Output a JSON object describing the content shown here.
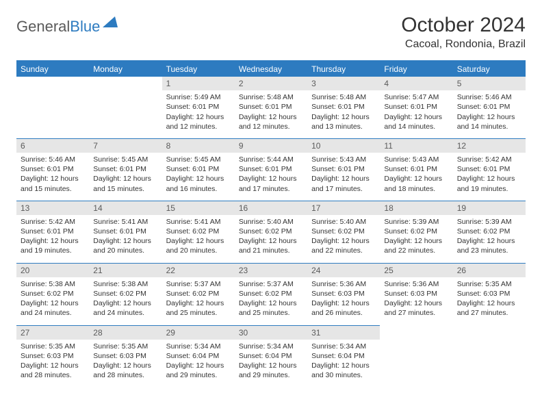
{
  "brand": {
    "word1": "General",
    "word2": "Blue",
    "logo_color": "#2d7bc0"
  },
  "title": "October 2024",
  "location": "Cacoal, Rondonia, Brazil",
  "colors": {
    "header_bg": "#2d7bc0",
    "header_text": "#ffffff",
    "daynum_bg": "#e6e6e6",
    "text": "#333333"
  },
  "day_headers": [
    "Sunday",
    "Monday",
    "Tuesday",
    "Wednesday",
    "Thursday",
    "Friday",
    "Saturday"
  ],
  "weeks": [
    [
      null,
      null,
      {
        "n": "1",
        "sunrise": "5:49 AM",
        "sunset": "6:01 PM",
        "daylight": "12 hours and 12 minutes."
      },
      {
        "n": "2",
        "sunrise": "5:48 AM",
        "sunset": "6:01 PM",
        "daylight": "12 hours and 12 minutes."
      },
      {
        "n": "3",
        "sunrise": "5:48 AM",
        "sunset": "6:01 PM",
        "daylight": "12 hours and 13 minutes."
      },
      {
        "n": "4",
        "sunrise": "5:47 AM",
        "sunset": "6:01 PM",
        "daylight": "12 hours and 14 minutes."
      },
      {
        "n": "5",
        "sunrise": "5:46 AM",
        "sunset": "6:01 PM",
        "daylight": "12 hours and 14 minutes."
      }
    ],
    [
      {
        "n": "6",
        "sunrise": "5:46 AM",
        "sunset": "6:01 PM",
        "daylight": "12 hours and 15 minutes."
      },
      {
        "n": "7",
        "sunrise": "5:45 AM",
        "sunset": "6:01 PM",
        "daylight": "12 hours and 15 minutes."
      },
      {
        "n": "8",
        "sunrise": "5:45 AM",
        "sunset": "6:01 PM",
        "daylight": "12 hours and 16 minutes."
      },
      {
        "n": "9",
        "sunrise": "5:44 AM",
        "sunset": "6:01 PM",
        "daylight": "12 hours and 17 minutes."
      },
      {
        "n": "10",
        "sunrise": "5:43 AM",
        "sunset": "6:01 PM",
        "daylight": "12 hours and 17 minutes."
      },
      {
        "n": "11",
        "sunrise": "5:43 AM",
        "sunset": "6:01 PM",
        "daylight": "12 hours and 18 minutes."
      },
      {
        "n": "12",
        "sunrise": "5:42 AM",
        "sunset": "6:01 PM",
        "daylight": "12 hours and 19 minutes."
      }
    ],
    [
      {
        "n": "13",
        "sunrise": "5:42 AM",
        "sunset": "6:01 PM",
        "daylight": "12 hours and 19 minutes."
      },
      {
        "n": "14",
        "sunrise": "5:41 AM",
        "sunset": "6:01 PM",
        "daylight": "12 hours and 20 minutes."
      },
      {
        "n": "15",
        "sunrise": "5:41 AM",
        "sunset": "6:02 PM",
        "daylight": "12 hours and 20 minutes."
      },
      {
        "n": "16",
        "sunrise": "5:40 AM",
        "sunset": "6:02 PM",
        "daylight": "12 hours and 21 minutes."
      },
      {
        "n": "17",
        "sunrise": "5:40 AM",
        "sunset": "6:02 PM",
        "daylight": "12 hours and 22 minutes."
      },
      {
        "n": "18",
        "sunrise": "5:39 AM",
        "sunset": "6:02 PM",
        "daylight": "12 hours and 22 minutes."
      },
      {
        "n": "19",
        "sunrise": "5:39 AM",
        "sunset": "6:02 PM",
        "daylight": "12 hours and 23 minutes."
      }
    ],
    [
      {
        "n": "20",
        "sunrise": "5:38 AM",
        "sunset": "6:02 PM",
        "daylight": "12 hours and 24 minutes."
      },
      {
        "n": "21",
        "sunrise": "5:38 AM",
        "sunset": "6:02 PM",
        "daylight": "12 hours and 24 minutes."
      },
      {
        "n": "22",
        "sunrise": "5:37 AM",
        "sunset": "6:02 PM",
        "daylight": "12 hours and 25 minutes."
      },
      {
        "n": "23",
        "sunrise": "5:37 AM",
        "sunset": "6:02 PM",
        "daylight": "12 hours and 25 minutes."
      },
      {
        "n": "24",
        "sunrise": "5:36 AM",
        "sunset": "6:03 PM",
        "daylight": "12 hours and 26 minutes."
      },
      {
        "n": "25",
        "sunrise": "5:36 AM",
        "sunset": "6:03 PM",
        "daylight": "12 hours and 27 minutes."
      },
      {
        "n": "26",
        "sunrise": "5:35 AM",
        "sunset": "6:03 PM",
        "daylight": "12 hours and 27 minutes."
      }
    ],
    [
      {
        "n": "27",
        "sunrise": "5:35 AM",
        "sunset": "6:03 PM",
        "daylight": "12 hours and 28 minutes."
      },
      {
        "n": "28",
        "sunrise": "5:35 AM",
        "sunset": "6:03 PM",
        "daylight": "12 hours and 28 minutes."
      },
      {
        "n": "29",
        "sunrise": "5:34 AM",
        "sunset": "6:04 PM",
        "daylight": "12 hours and 29 minutes."
      },
      {
        "n": "30",
        "sunrise": "5:34 AM",
        "sunset": "6:04 PM",
        "daylight": "12 hours and 29 minutes."
      },
      {
        "n": "31",
        "sunrise": "5:34 AM",
        "sunset": "6:04 PM",
        "daylight": "12 hours and 30 minutes."
      },
      null,
      null
    ]
  ],
  "labels": {
    "sunrise": "Sunrise:",
    "sunset": "Sunset:",
    "daylight": "Daylight:"
  }
}
